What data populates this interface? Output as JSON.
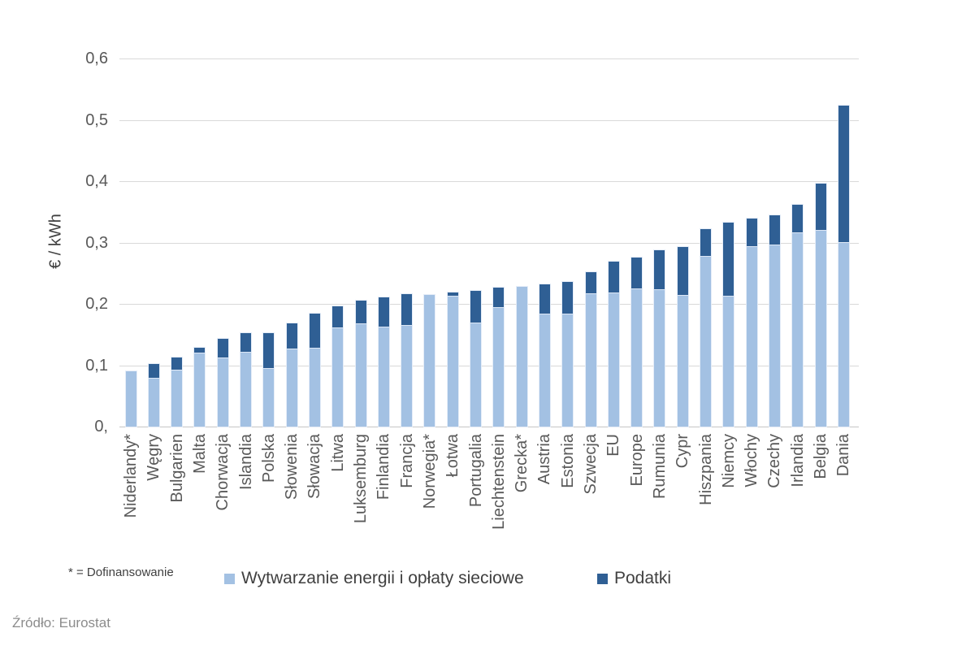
{
  "chart_data": {
    "type": "bar",
    "stacked": true,
    "title": "",
    "ylabel": "€ / kWh",
    "xlabel": "",
    "ylim": [
      0,
      0.6
    ],
    "grid": true,
    "legend_position": "bottom",
    "ytick_values": [
      0,
      0.1,
      0.2,
      0.3,
      0.4,
      0.5,
      0.6
    ],
    "ytick_labels": [
      "0,",
      "0,1",
      "0,2",
      "0,3",
      "0,4",
      "0,5",
      "0,6"
    ],
    "categories": [
      "Niderlandy*",
      "Węgry",
      "Bulgarien",
      "Malta",
      "Chorwacja",
      "Islandia",
      "Polska",
      "Słowenia",
      "Słowacja",
      "Litwa",
      "Luksemburg",
      "Finlandia",
      "Francja",
      "Norwegia*",
      "Łotwa",
      "Portugalia",
      "Liechtenstein",
      "Grecka*",
      "Austria",
      "Estonia",
      "Szwecja",
      "EU",
      "Europe",
      "Rumunia",
      "Cypr",
      "Hiszpania",
      "Niemcy",
      "Włochy",
      "Czechy",
      "Irlandia",
      "Belgia",
      "Dania"
    ],
    "series": [
      {
        "name": "Wytwarzanie energii i opłaty sieciowe",
        "color": "#A3C1E3",
        "values": [
          0.09,
          0.079,
          0.092,
          0.121,
          0.112,
          0.122,
          0.096,
          0.127,
          0.128,
          0.161,
          0.168,
          0.163,
          0.166,
          0.215,
          0.213,
          0.17,
          0.195,
          0.228,
          0.184,
          0.184,
          0.217,
          0.218,
          0.225,
          0.224,
          0.214,
          0.278,
          0.213,
          0.294,
          0.297,
          0.316,
          0.321,
          0.3
        ]
      },
      {
        "name": "Podatki",
        "color": "#2F5F94",
        "values": [
          0.0,
          0.023,
          0.02,
          0.008,
          0.031,
          0.03,
          0.057,
          0.041,
          0.056,
          0.035,
          0.037,
          0.047,
          0.05,
          0.0,
          0.005,
          0.051,
          0.031,
          0.0,
          0.048,
          0.052,
          0.035,
          0.051,
          0.051,
          0.064,
          0.079,
          0.044,
          0.119,
          0.045,
          0.048,
          0.046,
          0.075,
          0.223
        ]
      }
    ]
  },
  "footnote": "* = Dofinansowanie",
  "source": "Źródło: Eurostat",
  "colors": {
    "generation_series": "#A3C1E3",
    "taxes_series": "#2F5F94",
    "gridline": "#D9D9D9",
    "axis_text": "#595959",
    "legend_text": "#404040"
  }
}
